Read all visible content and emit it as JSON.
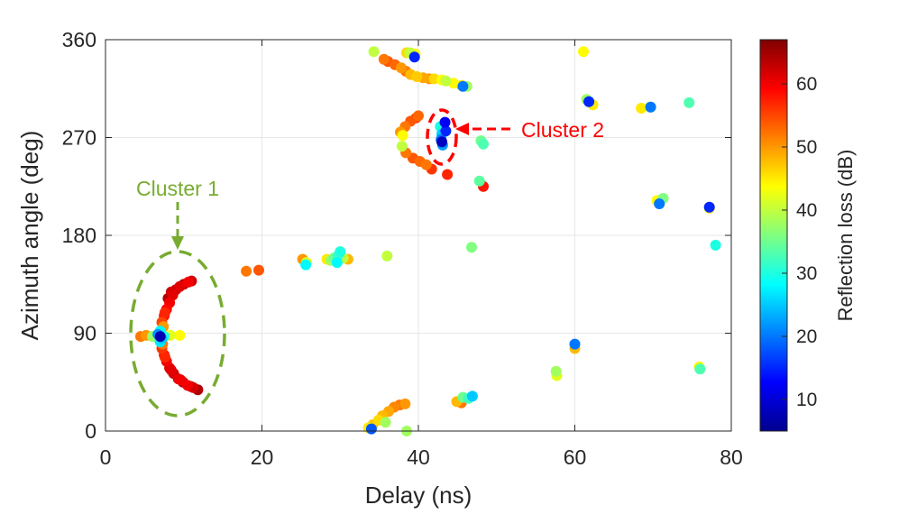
{
  "chart_data": {
    "type": "scatter",
    "xlabel": "Delay (ns)",
    "ylabel": "Azimuth angle (deg)",
    "xlim": [
      0,
      80
    ],
    "ylim": [
      0,
      360
    ],
    "xticks": [
      "0",
      "20",
      "40",
      "60",
      "80"
    ],
    "yticks": [
      "0",
      "90",
      "180",
      "270",
      "360"
    ],
    "grid": true,
    "colorbar": {
      "label": "Reflection loss (dB)",
      "range": [
        5,
        67
      ],
      "ticks": [
        "10",
        "20",
        "30",
        "40",
        "50",
        "60"
      ],
      "colormap": "jet"
    },
    "annotations": [
      {
        "text": "Cluster 1",
        "color": "#77ac30"
      },
      {
        "text": "Cluster 2",
        "color": "#ff0000"
      }
    ],
    "points": [
      [
        9.0,
        130,
        62
      ],
      [
        9.5,
        133,
        61
      ],
      [
        10.0,
        135,
        63
      ],
      [
        10.6,
        137,
        60
      ],
      [
        11.0,
        138,
        62
      ],
      [
        8.6,
        125,
        61
      ],
      [
        8.2,
        118,
        60
      ],
      [
        7.8,
        112,
        59
      ],
      [
        7.5,
        106,
        58
      ],
      [
        7.2,
        100,
        55
      ],
      [
        8.0,
        122,
        64
      ],
      [
        8.4,
        128,
        62
      ],
      [
        7.6,
        109,
        57
      ],
      [
        7.2,
        76,
        56
      ],
      [
        7.5,
        70,
        58
      ],
      [
        7.8,
        64,
        60
      ],
      [
        8.2,
        58,
        61
      ],
      [
        8.7,
        53,
        62
      ],
      [
        9.3,
        48,
        61
      ],
      [
        9.9,
        45,
        63
      ],
      [
        10.5,
        42,
        60
      ],
      [
        11.2,
        40,
        62
      ],
      [
        11.8,
        38,
        64
      ],
      [
        7.6,
        68,
        57
      ],
      [
        8.4,
        56,
        61
      ],
      [
        9.6,
        47,
        60
      ],
      [
        10.9,
        41,
        63
      ],
      [
        7.3,
        80,
        52
      ],
      [
        7.4,
        96,
        50
      ],
      [
        6.9,
        84,
        35
      ],
      [
        7.5,
        87,
        30
      ],
      [
        8.3,
        88,
        42
      ],
      [
        9.5,
        88,
        44
      ],
      [
        6.0,
        87,
        38
      ],
      [
        7.0,
        92,
        28
      ],
      [
        7.0,
        82,
        27
      ],
      [
        6.7,
        89,
        22
      ],
      [
        7.2,
        85,
        25
      ],
      [
        7.0,
        87,
        8
      ],
      [
        4.5,
        87,
        52
      ],
      [
        5.2,
        88,
        50
      ],
      [
        18.0,
        147,
        52
      ],
      [
        19.6,
        148,
        54
      ],
      [
        25.2,
        158,
        50
      ],
      [
        25.7,
        155,
        42
      ],
      [
        25.6,
        153,
        28
      ],
      [
        28.3,
        158,
        45
      ],
      [
        28.8,
        157,
        38
      ],
      [
        29.2,
        159,
        35
      ],
      [
        29.7,
        161,
        32
      ],
      [
        30.0,
        165,
        30
      ],
      [
        29.6,
        155,
        28
      ],
      [
        30.4,
        159,
        40
      ],
      [
        31.0,
        158,
        48
      ],
      [
        36.0,
        161,
        40
      ],
      [
        46.8,
        169,
        36
      ],
      [
        33.6,
        3,
        45
      ],
      [
        34.2,
        6,
        47
      ],
      [
        34.9,
        10,
        46
      ],
      [
        35.4,
        14,
        48
      ],
      [
        36.2,
        18,
        49
      ],
      [
        36.9,
        22,
        51
      ],
      [
        37.6,
        24,
        52
      ],
      [
        38.3,
        25,
        50
      ],
      [
        34.0,
        2,
        42
      ],
      [
        34.0,
        2,
        18
      ],
      [
        35.8,
        8,
        38
      ],
      [
        38.5,
        0,
        38
      ],
      [
        34.3,
        349,
        40
      ],
      [
        35.6,
        342,
        52
      ],
      [
        36.1,
        340,
        54
      ],
      [
        37.0,
        337,
        53
      ],
      [
        37.8,
        334,
        50
      ],
      [
        38.4,
        331,
        52
      ],
      [
        39.0,
        328,
        48
      ],
      [
        39.8,
        326,
        47
      ],
      [
        40.6,
        325,
        49
      ],
      [
        41.4,
        324,
        50
      ],
      [
        42.0,
        324,
        46
      ],
      [
        43.0,
        323,
        44
      ],
      [
        43.5,
        322,
        40
      ],
      [
        44.5,
        320,
        44
      ],
      [
        45.5,
        318,
        45
      ],
      [
        46.2,
        317,
        38
      ],
      [
        45.7,
        317,
        20
      ],
      [
        38.5,
        348,
        46
      ],
      [
        38.9,
        348,
        40
      ],
      [
        39.6,
        347,
        44
      ],
      [
        39.5,
        344,
        15
      ],
      [
        37.7,
        275,
        50
      ],
      [
        38.3,
        280,
        52
      ],
      [
        39.0,
        285,
        54
      ],
      [
        39.7,
        288,
        55
      ],
      [
        40.0,
        290,
        53
      ],
      [
        38.0,
        272,
        44
      ],
      [
        37.9,
        262,
        40
      ],
      [
        38.4,
        256,
        52
      ],
      [
        39.3,
        251,
        54
      ],
      [
        40.2,
        248,
        53
      ],
      [
        41.0,
        245,
        52
      ],
      [
        41.7,
        241,
        56
      ],
      [
        43.7,
        236,
        57
      ],
      [
        48.3,
        225,
        58
      ],
      [
        47.8,
        230,
        34
      ],
      [
        43.0,
        273,
        25
      ],
      [
        42.9,
        268,
        20
      ],
      [
        43.1,
        263,
        22
      ],
      [
        43.5,
        276,
        15
      ],
      [
        42.8,
        280,
        30
      ],
      [
        43.0,
        266,
        9
      ],
      [
        43.4,
        284,
        12
      ],
      [
        48.0,
        267,
        35
      ],
      [
        48.3,
        264,
        33
      ],
      [
        61.1,
        349,
        44
      ],
      [
        61.5,
        305,
        38
      ],
      [
        61.8,
        303,
        30
      ],
      [
        62.3,
        300,
        45
      ],
      [
        61.8,
        303,
        15
      ],
      [
        68.5,
        297,
        45
      ],
      [
        69.6,
        298,
        42
      ],
      [
        69.7,
        298,
        20
      ],
      [
        74.6,
        302,
        33
      ],
      [
        70.5,
        212,
        44
      ],
      [
        71.3,
        214,
        36
      ],
      [
        70.8,
        209,
        20
      ],
      [
        77.2,
        205,
        43
      ],
      [
        77.2,
        206,
        15
      ],
      [
        78.0,
        171,
        30
      ],
      [
        60.0,
        76,
        48
      ],
      [
        60.0,
        80,
        20
      ],
      [
        57.7,
        51,
        42
      ],
      [
        57.6,
        55,
        38
      ],
      [
        75.9,
        59,
        44
      ],
      [
        76.0,
        57,
        33
      ],
      [
        44.9,
        27,
        48
      ],
      [
        45.5,
        26,
        52
      ],
      [
        45.7,
        31,
        35
      ],
      [
        46.4,
        30,
        32
      ],
      [
        46.9,
        32,
        25
      ]
    ]
  }
}
